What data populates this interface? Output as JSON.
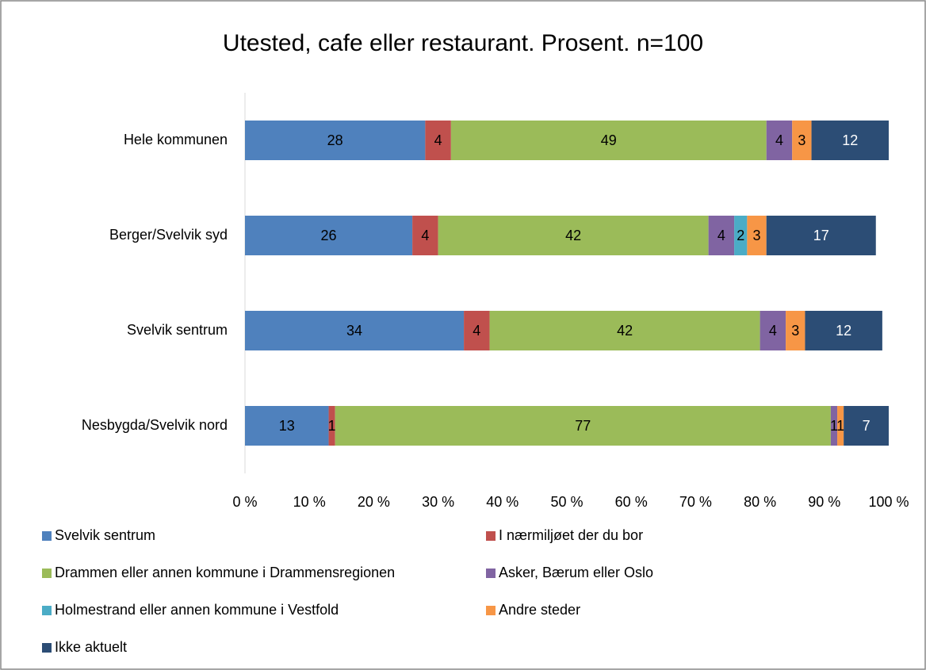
{
  "chart_data": {
    "type": "stacked_barh",
    "title": "Utested, cafe eller restaurant. Prosent. n=100",
    "categories": [
      "Hele kommunen",
      "Berger/Svelvik syd",
      "Svelvik sentrum",
      "Nesbygda/Svelvik nord"
    ],
    "series": [
      {
        "name": "Svelvik sentrum",
        "color": "#4f81bd",
        "values": [
          28,
          26,
          34,
          13
        ]
      },
      {
        "name": "I nærmiljøet der du bor",
        "color": "#c0504d",
        "values": [
          4,
          4,
          4,
          1
        ]
      },
      {
        "name": "Drammen eller annen kommune i Drammensregionen",
        "color": "#9bbb59",
        "values": [
          49,
          42,
          42,
          77
        ]
      },
      {
        "name": "Asker, Bærum eller Oslo",
        "color": "#8064a2",
        "values": [
          4,
          4,
          4,
          1
        ]
      },
      {
        "name": "Holmestrand eller annen kommune i Vestfold",
        "color": "#4bacc6",
        "values": [
          null,
          2,
          null,
          null
        ]
      },
      {
        "name": "Andre steder",
        "color": "#f79646",
        "values": [
          3,
          3,
          3,
          1
        ]
      },
      {
        "name": "Ikke aktuelt",
        "color": "#2c4d75",
        "values": [
          12,
          17,
          12,
          7
        ]
      }
    ],
    "xlim": [
      0,
      100
    ],
    "xticks": [
      {
        "value": 0,
        "label": "0 %"
      },
      {
        "value": 10,
        "label": "10 %"
      },
      {
        "value": 20,
        "label": "20 %"
      },
      {
        "value": 30,
        "label": "30 %"
      },
      {
        "value": 40,
        "label": "40 %"
      },
      {
        "value": 50,
        "label": "50 %"
      },
      {
        "value": 60,
        "label": "60 %"
      },
      {
        "value": 70,
        "label": "70 %"
      },
      {
        "value": 80,
        "label": "80 %"
      },
      {
        "value": 90,
        "label": "90 %"
      },
      {
        "value": 100,
        "label": "100 %"
      }
    ],
    "grid": false,
    "legend": "bottom"
  }
}
